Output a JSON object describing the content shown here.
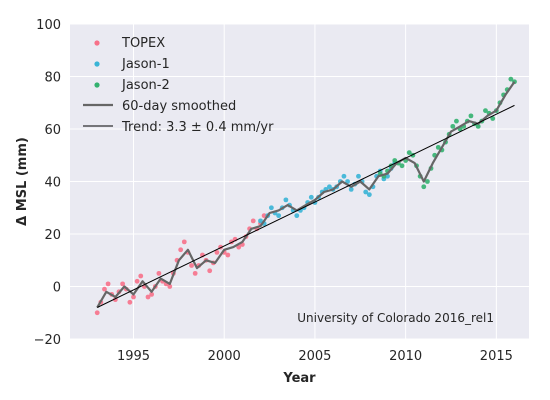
{
  "chart_data": {
    "type": "scatter",
    "title": "",
    "xlabel": "Year",
    "ylabel": "Δ MSL (mm)",
    "xlim": [
      1991.5,
      2016.8
    ],
    "ylim": [
      -20,
      100
    ],
    "xticks": [
      1995,
      2000,
      2005,
      2010,
      2015
    ],
    "yticks": [
      -20,
      0,
      20,
      40,
      60,
      80,
      100
    ],
    "grid": true,
    "legend_position": "top-left",
    "annotation": "University of Colorado 2016_rel1",
    "colors": {
      "background": "#eaeaf2",
      "grid": "#ffffff",
      "topex": "#f77189",
      "jason1": "#36ada4",
      "jason1_display": "#39b4d6",
      "jason2": "#33b16f",
      "smoothed": "#666666",
      "trend": "#000000"
    },
    "series": [
      {
        "name": "TOPEX",
        "kind": "scatter",
        "x_range": [
          1992.9,
          2002.2
        ],
        "points": [
          [
            1993.0,
            -10
          ],
          [
            1993.2,
            -6
          ],
          [
            1993.4,
            -1
          ],
          [
            1993.6,
            1
          ],
          [
            1993.8,
            -3
          ],
          [
            1994.0,
            -5
          ],
          [
            1994.2,
            -2
          ],
          [
            1994.4,
            1
          ],
          [
            1994.6,
            -1
          ],
          [
            1994.8,
            -6
          ],
          [
            1995.0,
            -4
          ],
          [
            1995.2,
            2
          ],
          [
            1995.4,
            4
          ],
          [
            1995.6,
            0
          ],
          [
            1995.8,
            -4
          ],
          [
            1996.0,
            -3
          ],
          [
            1996.2,
            0
          ],
          [
            1996.4,
            5
          ],
          [
            1996.6,
            2
          ],
          [
            1996.8,
            1
          ],
          [
            1997.0,
            0
          ],
          [
            1997.2,
            5
          ],
          [
            1997.4,
            10
          ],
          [
            1997.6,
            14
          ],
          [
            1997.8,
            17
          ],
          [
            1998.0,
            13
          ],
          [
            1998.2,
            8
          ],
          [
            1998.4,
            5
          ],
          [
            1998.6,
            8
          ],
          [
            1998.8,
            12
          ],
          [
            1999.0,
            10
          ],
          [
            1999.2,
            6
          ],
          [
            1999.4,
            9
          ],
          [
            1999.6,
            13
          ],
          [
            1999.8,
            15
          ],
          [
            2000.0,
            13
          ],
          [
            2000.2,
            12
          ],
          [
            2000.4,
            17
          ],
          [
            2000.6,
            18
          ],
          [
            2000.8,
            15
          ],
          [
            2001.0,
            16
          ],
          [
            2001.2,
            19
          ],
          [
            2001.4,
            22
          ],
          [
            2001.6,
            25
          ],
          [
            2001.8,
            22
          ],
          [
            2002.0,
            24
          ],
          [
            2002.2,
            27
          ]
        ]
      },
      {
        "name": "Jason-1",
        "kind": "scatter",
        "x_range": [
          2002.0,
          2009.5
        ],
        "points": [
          [
            2002.0,
            25
          ],
          [
            2002.2,
            24
          ],
          [
            2002.4,
            27
          ],
          [
            2002.6,
            30
          ],
          [
            2002.8,
            28
          ],
          [
            2003.0,
            27
          ],
          [
            2003.2,
            30
          ],
          [
            2003.4,
            33
          ],
          [
            2003.6,
            31
          ],
          [
            2003.8,
            29
          ],
          [
            2004.0,
            27
          ],
          [
            2004.2,
            29
          ],
          [
            2004.4,
            30
          ],
          [
            2004.6,
            32
          ],
          [
            2004.8,
            34
          ],
          [
            2005.0,
            32
          ],
          [
            2005.2,
            34
          ],
          [
            2005.4,
            36
          ],
          [
            2005.6,
            37
          ],
          [
            2005.8,
            38
          ],
          [
            2006.0,
            37
          ],
          [
            2006.2,
            38
          ],
          [
            2006.4,
            40
          ],
          [
            2006.6,
            42
          ],
          [
            2006.8,
            40
          ],
          [
            2007.0,
            37
          ],
          [
            2007.2,
            39
          ],
          [
            2007.4,
            42
          ],
          [
            2007.6,
            40
          ],
          [
            2007.8,
            36
          ],
          [
            2008.0,
            35
          ],
          [
            2008.2,
            38
          ],
          [
            2008.4,
            42
          ],
          [
            2008.6,
            44
          ],
          [
            2008.8,
            41
          ],
          [
            2009.0,
            42
          ],
          [
            2009.2,
            45
          ],
          [
            2009.4,
            47
          ]
        ]
      },
      {
        "name": "Jason-2",
        "kind": "scatter",
        "x_range": [
          2008.5,
          2016.0
        ],
        "points": [
          [
            2008.6,
            43
          ],
          [
            2008.8,
            42
          ],
          [
            2009.0,
            44
          ],
          [
            2009.2,
            46
          ],
          [
            2009.4,
            48
          ],
          [
            2009.6,
            47
          ],
          [
            2009.8,
            46
          ],
          [
            2010.0,
            48
          ],
          [
            2010.2,
            51
          ],
          [
            2010.4,
            50
          ],
          [
            2010.6,
            46
          ],
          [
            2010.8,
            42
          ],
          [
            2011.0,
            38
          ],
          [
            2011.2,
            40
          ],
          [
            2011.4,
            45
          ],
          [
            2011.6,
            50
          ],
          [
            2011.8,
            53
          ],
          [
            2012.0,
            52
          ],
          [
            2012.2,
            55
          ],
          [
            2012.4,
            58
          ],
          [
            2012.6,
            61
          ],
          [
            2012.8,
            63
          ],
          [
            2013.0,
            60
          ],
          [
            2013.2,
            61
          ],
          [
            2013.4,
            63
          ],
          [
            2013.6,
            65
          ],
          [
            2013.8,
            62
          ],
          [
            2014.0,
            61
          ],
          [
            2014.2,
            63
          ],
          [
            2014.4,
            67
          ],
          [
            2014.6,
            66
          ],
          [
            2014.8,
            64
          ],
          [
            2015.0,
            67
          ],
          [
            2015.2,
            70
          ],
          [
            2015.4,
            73
          ],
          [
            2015.6,
            75
          ],
          [
            2015.8,
            79
          ],
          [
            2016.0,
            78
          ]
        ]
      },
      {
        "name": "60-day smoothed",
        "kind": "line",
        "points": [
          [
            1993.0,
            -8
          ],
          [
            1993.5,
            -2
          ],
          [
            1994.0,
            -4
          ],
          [
            1994.5,
            0
          ],
          [
            1995.0,
            -3
          ],
          [
            1995.5,
            2
          ],
          [
            1996.0,
            -2
          ],
          [
            1996.5,
            3
          ],
          [
            1997.0,
            1
          ],
          [
            1997.5,
            10
          ],
          [
            1998.0,
            14
          ],
          [
            1998.5,
            7
          ],
          [
            1999.0,
            10
          ],
          [
            1999.5,
            9
          ],
          [
            2000.0,
            14
          ],
          [
            2000.5,
            15
          ],
          [
            2001.0,
            17
          ],
          [
            2001.5,
            22
          ],
          [
            2002.0,
            23
          ],
          [
            2002.5,
            28
          ],
          [
            2003.0,
            29
          ],
          [
            2003.5,
            31
          ],
          [
            2004.0,
            29
          ],
          [
            2004.5,
            31
          ],
          [
            2005.0,
            33
          ],
          [
            2005.5,
            36
          ],
          [
            2006.0,
            37
          ],
          [
            2006.5,
            40
          ],
          [
            2007.0,
            38
          ],
          [
            2007.5,
            40
          ],
          [
            2008.0,
            37
          ],
          [
            2008.5,
            42
          ],
          [
            2009.0,
            43
          ],
          [
            2009.5,
            47
          ],
          [
            2010.0,
            49
          ],
          [
            2010.5,
            47
          ],
          [
            2011.0,
            40
          ],
          [
            2011.5,
            47
          ],
          [
            2012.0,
            53
          ],
          [
            2012.5,
            59
          ],
          [
            2013.0,
            61
          ],
          [
            2013.5,
            63
          ],
          [
            2014.0,
            62
          ],
          [
            2014.5,
            65
          ],
          [
            2015.0,
            67
          ],
          [
            2015.5,
            73
          ],
          [
            2016.0,
            78
          ]
        ]
      },
      {
        "name": "Trend: 3.3 ± 0.4 mm/yr",
        "kind": "trend",
        "points": [
          [
            1993.0,
            -8
          ],
          [
            2016.0,
            69
          ]
        ]
      }
    ]
  }
}
